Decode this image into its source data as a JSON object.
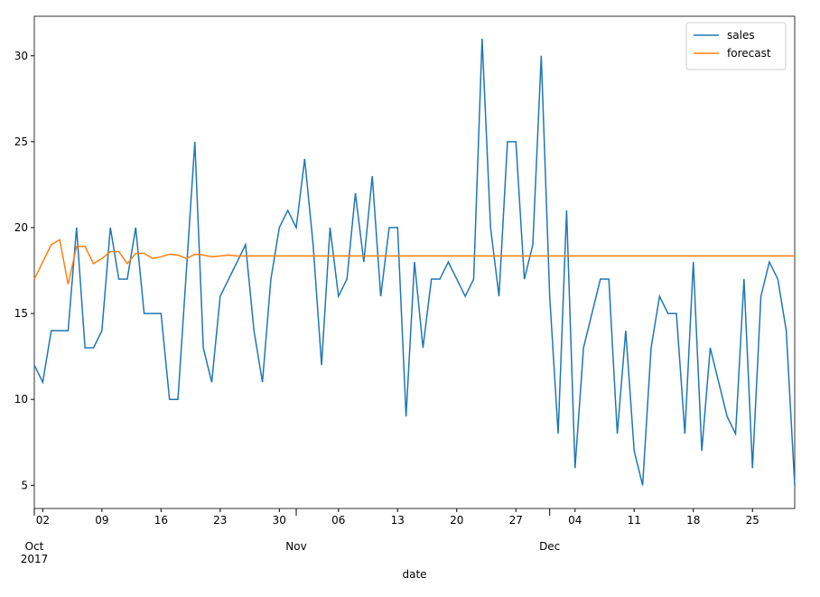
{
  "chart_data": {
    "type": "line",
    "xlabel": "date",
    "x": [
      "2017-10-01",
      "2017-10-02",
      "2017-10-03",
      "2017-10-04",
      "2017-10-05",
      "2017-10-06",
      "2017-10-07",
      "2017-10-08",
      "2017-10-09",
      "2017-10-10",
      "2017-10-11",
      "2017-10-12",
      "2017-10-13",
      "2017-10-14",
      "2017-10-15",
      "2017-10-16",
      "2017-10-17",
      "2017-10-18",
      "2017-10-19",
      "2017-10-20",
      "2017-10-21",
      "2017-10-22",
      "2017-10-23",
      "2017-10-24",
      "2017-10-25",
      "2017-10-26",
      "2017-10-27",
      "2017-10-28",
      "2017-10-29",
      "2017-10-30",
      "2017-10-31",
      "2017-11-01",
      "2017-11-02",
      "2017-11-03",
      "2017-11-04",
      "2017-11-05",
      "2017-11-06",
      "2017-11-07",
      "2017-11-08",
      "2017-11-09",
      "2017-11-10",
      "2017-11-11",
      "2017-11-12",
      "2017-11-13",
      "2017-11-14",
      "2017-11-15",
      "2017-11-16",
      "2017-11-17",
      "2017-11-18",
      "2017-11-19",
      "2017-11-20",
      "2017-11-21",
      "2017-11-22",
      "2017-11-23",
      "2017-11-24",
      "2017-11-25",
      "2017-11-26",
      "2017-11-27",
      "2017-11-28",
      "2017-11-29",
      "2017-11-30",
      "2017-12-01",
      "2017-12-02",
      "2017-12-03",
      "2017-12-04",
      "2017-12-05",
      "2017-12-06",
      "2017-12-07",
      "2017-12-08",
      "2017-12-09",
      "2017-12-10",
      "2017-12-11",
      "2017-12-12",
      "2017-12-13",
      "2017-12-14",
      "2017-12-15",
      "2017-12-16",
      "2017-12-17",
      "2017-12-18",
      "2017-12-19",
      "2017-12-20",
      "2017-12-21",
      "2017-12-22",
      "2017-12-23",
      "2017-12-24",
      "2017-12-25",
      "2017-12-26",
      "2017-12-27",
      "2017-12-28",
      "2017-12-29",
      "2017-12-30"
    ],
    "series": [
      {
        "name": "sales",
        "color": "#1f77b4",
        "values": [
          12,
          11,
          14,
          14,
          14,
          20,
          13,
          13,
          14,
          20,
          17,
          17,
          20,
          15,
          15,
          15,
          10,
          10,
          17.5,
          25,
          13,
          11,
          16,
          17,
          18,
          19,
          14,
          11,
          17,
          20,
          21,
          20,
          24,
          19,
          12,
          20,
          16,
          17,
          22,
          18,
          23,
          16,
          20,
          20,
          9,
          18,
          13,
          17,
          17,
          18,
          17,
          16,
          17,
          31,
          20,
          16,
          25,
          25,
          17,
          19,
          30,
          16,
          8,
          21,
          6,
          13,
          15,
          17,
          17,
          8,
          14,
          7,
          5,
          13,
          16,
          15,
          15,
          8,
          18,
          7,
          13,
          11,
          9,
          8,
          17,
          6,
          16,
          18,
          17,
          14,
          5
        ]
      },
      {
        "name": "forecast",
        "color": "#ff7f0e",
        "values": [
          17,
          18,
          19,
          19.3,
          16.7,
          18.9,
          18.9,
          17.9,
          18.2,
          18.6,
          18.6,
          17.9,
          18.5,
          18.5,
          18.2,
          18.3,
          18.45,
          18.4,
          18.2,
          18.45,
          18.4,
          18.3,
          18.35,
          18.4,
          18.35,
          18.35,
          18.35,
          18.35,
          18.35,
          18.35,
          18.35,
          18.35,
          18.35,
          18.35,
          18.35,
          18.35,
          18.35,
          18.35,
          18.35,
          18.35,
          18.35,
          18.35,
          18.35,
          18.35,
          18.35,
          18.35,
          18.35,
          18.35,
          18.35,
          18.35,
          18.35,
          18.35,
          18.35,
          18.35,
          18.35,
          18.35,
          18.35,
          18.35,
          18.35,
          18.35,
          18.35,
          18.35,
          18.35,
          18.35,
          18.35,
          18.35,
          18.35,
          18.35,
          18.35,
          18.35,
          18.35,
          18.35,
          18.35,
          18.35,
          18.35,
          18.35,
          18.35,
          18.35,
          18.35,
          18.35,
          18.35,
          18.35,
          18.35,
          18.35,
          18.35,
          18.35,
          18.35,
          18.35,
          18.35,
          18.35,
          18.35
        ]
      }
    ],
    "xlim": [
      "2017-10-01",
      "2017-12-30"
    ],
    "xticks": [
      {
        "value": "2017-10-02",
        "label": "02"
      },
      {
        "value": "2017-10-09",
        "label": "09"
      },
      {
        "value": "2017-10-16",
        "label": "16"
      },
      {
        "value": "2017-10-23",
        "label": "23"
      },
      {
        "value": "2017-10-30",
        "label": "30"
      },
      {
        "value": "2017-11-06",
        "label": "06"
      },
      {
        "value": "2017-11-13",
        "label": "13"
      },
      {
        "value": "2017-11-20",
        "label": "20"
      },
      {
        "value": "2017-11-27",
        "label": "27"
      },
      {
        "value": "2017-12-04",
        "label": "04"
      },
      {
        "value": "2017-12-11",
        "label": "11"
      },
      {
        "value": "2017-12-18",
        "label": "18"
      },
      {
        "value": "2017-12-25",
        "label": "25"
      }
    ],
    "major_xticks": [
      {
        "value": "2017-10-01",
        "label": [
          "Oct",
          "2017"
        ]
      },
      {
        "value": "2017-11-01",
        "label": [
          "Nov"
        ]
      },
      {
        "value": "2017-12-01",
        "label": [
          "Dec"
        ]
      }
    ],
    "ylim": [
      3.65,
      32.3
    ],
    "yticks": [
      5,
      10,
      15,
      20,
      25,
      30
    ],
    "legend": "upper right"
  }
}
